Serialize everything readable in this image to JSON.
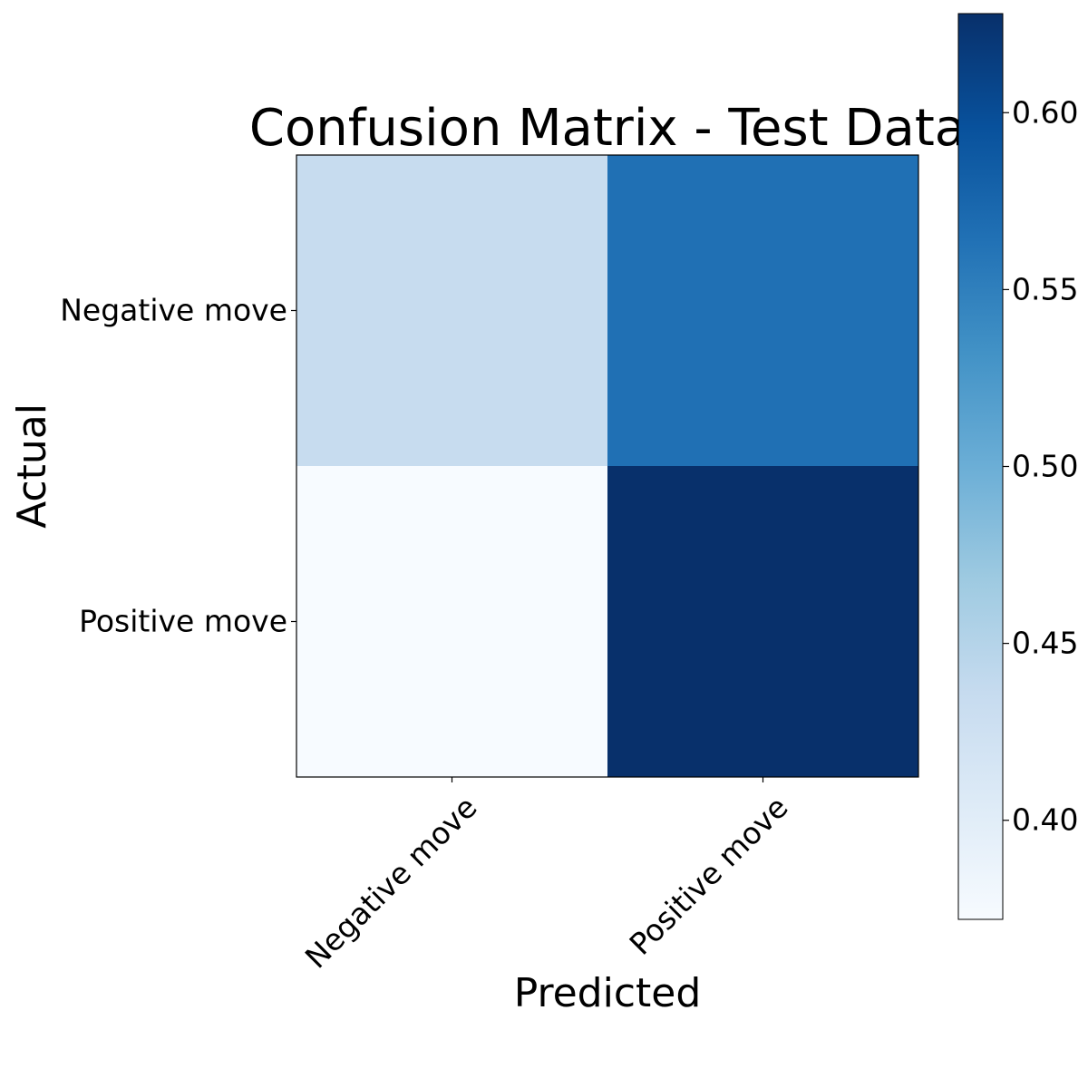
{
  "chart_data": {
    "type": "heatmap",
    "title": "Confusion Matrix - Test Data",
    "xlabel": "Predicted",
    "ylabel": "Actual",
    "x_categories": [
      "Negative move",
      "Positive move"
    ],
    "y_categories": [
      "Negative move",
      "Positive move"
    ],
    "values": [
      [
        0.435,
        0.565
      ],
      [
        0.372,
        0.628
      ]
    ],
    "colormap": "Blues",
    "colorbar": {
      "range": [
        0.372,
        0.628
      ],
      "ticks": [
        0.4,
        0.45,
        0.5,
        0.55,
        0.6
      ],
      "tick_labels": [
        "0.40",
        "0.45",
        "0.50",
        "0.55",
        "0.60"
      ]
    },
    "grid": false
  }
}
